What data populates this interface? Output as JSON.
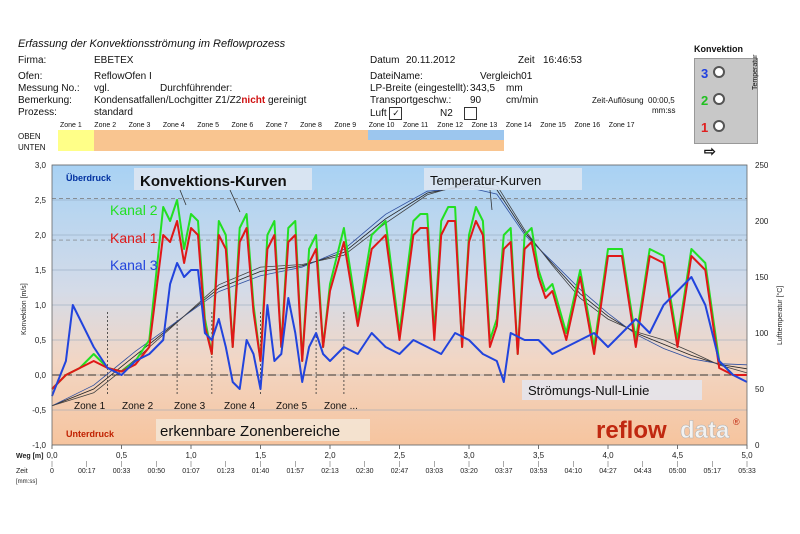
{
  "header": {
    "title": "Erfassung der Konvektionsströmung im Reflowprozess",
    "firma_label": "Firma:",
    "firma_value": "EBETEX",
    "datum_label": "Datum",
    "datum_value": "20.11.2012",
    "zeit_label": "Zeit",
    "zeit_value": "16:46:53",
    "ofen_label": "Ofen:",
    "ofen_value": "ReflowOfen I",
    "messung_label": "Messung No.:",
    "messung_value": "vgl.",
    "durchfuehrender_label": "Durchführender:",
    "bemerkung_label": "Bemerkung:",
    "bemerkung_value": "Kondensatfallen/Lochgitter Z1/Z2",
    "bemerkung_red": "nicht",
    "bemerkung_suffix": "gereinigt",
    "prozess_label": "Prozess:",
    "prozess_value": "standard",
    "dateiname_label": "DateiName:",
    "dateiname_value": "Vergleich01",
    "lp_label": "LP-Breite (eingestellt):",
    "lp_value": "343,5",
    "lp_unit": "mm",
    "transport_label": "Transportgeschw.:",
    "transport_value": "90",
    "transport_unit": "cm/min",
    "luft_label": "Luft",
    "n2_label": "N2",
    "aufloesung_label": "Zeit-Auflösung",
    "aufloesung_value": "00:00,5",
    "aufloesung_unit": "mm:ss"
  },
  "konvektion_panel": {
    "title": "Konvektion",
    "side_label": "Temperatur",
    "channels": [
      {
        "num": "3",
        "color": "#2040e0"
      },
      {
        "num": "2",
        "color": "#20c020"
      },
      {
        "num": "1",
        "color": "#e02020"
      }
    ]
  },
  "zone_strip": {
    "oben_label": "OBEN",
    "unten_label": "UNTEN",
    "zones": [
      "Zone 1",
      "Zone 2",
      "Zone 3",
      "Zone 4",
      "Zone 5",
      "Zone 6",
      "Zone 7",
      "Zone 8",
      "Zone 9",
      "Zone 10",
      "Zone 11",
      "Zone 12",
      "Zone 13",
      "Zone 14",
      "Zone 15",
      "Zone 16",
      "Zone 17"
    ]
  },
  "chart_data": {
    "type": "line",
    "ylabel_left": "Konvektion [m/s]",
    "ylabel_right": "Lufttemperatur [°C]",
    "xlabel_weg": "Weg [m]",
    "xlabel_zeit": "Zeit",
    "xlabel_zeit_unit": "[mm:ss]",
    "ylim_left": [
      -1.0,
      3.0
    ],
    "ylim_right": [
      0,
      250
    ],
    "xlim": [
      0,
      5.0
    ],
    "y_ticks_left": [
      "-1,0",
      "-0,5",
      "0,0",
      "0,5",
      "1,0",
      "1,5",
      "2,0",
      "2,5",
      "3,0"
    ],
    "y_ticks_right": [
      "0",
      "50",
      "100",
      "150",
      "200",
      "250"
    ],
    "x_ticks_weg": [
      "0,0",
      "0,5",
      "1,0",
      "1,5",
      "2,0",
      "2,5",
      "3,0",
      "3,5",
      "4,0",
      "4,5",
      "5,0"
    ],
    "x_ticks_zeit": [
      "0",
      "00:17",
      "00:33",
      "00:50",
      "01:07",
      "01:23",
      "01:40",
      "01:57",
      "02:13",
      "02:30",
      "02:47",
      "03:03",
      "03:20",
      "03:37",
      "03:53",
      "04:10",
      "04:27",
      "04:43",
      "05:00",
      "05:17",
      "05:33"
    ],
    "annotations": {
      "ueberdruck": "Überdruck",
      "unterdruck": "Unterdruck",
      "konvektions_kurven": "Konvektions-Kurven",
      "temperatur_kurven": "Temperatur-Kurven",
      "kanal2": "Kanal 2",
      "kanal1": "Kanal 1",
      "kanal3": "Kanal 3",
      "null_linie": "Strömungs-Null-Linie",
      "zonenbereiche": "erkennbare Zonenbereiche",
      "zone_labels": [
        "Zone 1",
        "Zone 2",
        "Zone 3",
        "Zone 4",
        "Zone 5",
        "Zone ..."
      ],
      "logo_a": "reflow",
      "logo_b": "data",
      "logo_reg": "®"
    },
    "colors": {
      "kanal1": "#e01818",
      "kanal2": "#22e022",
      "kanal3": "#2244dd"
    },
    "temperature_series": {
      "x": [
        0.0,
        0.3,
        0.6,
        0.9,
        1.2,
        1.5,
        1.8,
        2.1,
        2.4,
        2.7,
        3.0,
        3.2,
        3.4,
        3.6,
        3.8,
        4.0,
        4.2,
        4.4,
        4.6,
        4.8,
        5.0
      ],
      "values": [
        35,
        50,
        80,
        110,
        140,
        155,
        160,
        172,
        202,
        225,
        232,
        228,
        190,
        162,
        135,
        115,
        100,
        90,
        80,
        72,
        68
      ]
    },
    "series": [
      {
        "name": "Kanal 2",
        "x": [
          0.0,
          0.1,
          0.2,
          0.3,
          0.4,
          0.5,
          0.6,
          0.7,
          0.8,
          0.85,
          0.9,
          0.95,
          1.0,
          1.05,
          1.1,
          1.15,
          1.2,
          1.25,
          1.3,
          1.35,
          1.4,
          1.45,
          1.5,
          1.55,
          1.6,
          1.65,
          1.7,
          1.75,
          1.8,
          1.85,
          1.9,
          1.95,
          2.0,
          2.1,
          2.2,
          2.3,
          2.4,
          2.5,
          2.6,
          2.65,
          2.7,
          2.75,
          2.8,
          2.85,
          2.9,
          2.95,
          3.0,
          3.05,
          3.1,
          3.15,
          3.2,
          3.25,
          3.3,
          3.35,
          3.4,
          3.45,
          3.5,
          3.55,
          3.6,
          3.7,
          3.8,
          3.9,
          4.0,
          4.1,
          4.2,
          4.3,
          4.4,
          4.5,
          4.6,
          4.7,
          4.8,
          4.9,
          5.0
        ],
        "values": [
          -0.2,
          0.0,
          0.1,
          0.3,
          0.1,
          0.05,
          0.2,
          0.5,
          2.4,
          2.2,
          2.5,
          1.8,
          2.3,
          2.2,
          0.8,
          0.3,
          2.2,
          2.0,
          0.4,
          2.1,
          2.3,
          1.0,
          0.2,
          2.0,
          2.2,
          0.4,
          2.1,
          2.2,
          0.2,
          1.8,
          2.0,
          0.4,
          1.3,
          2.1,
          0.8,
          2.0,
          2.2,
          0.6,
          2.2,
          2.3,
          2.3,
          0.6,
          2.2,
          2.4,
          2.4,
          0.4,
          2.0,
          2.4,
          2.2,
          0.5,
          0.8,
          2.0,
          2.1,
          0.3,
          2.0,
          2.1,
          1.5,
          1.2,
          1.3,
          0.6,
          1.5,
          0.4,
          1.8,
          1.8,
          0.5,
          1.8,
          1.7,
          0.5,
          1.8,
          1.6,
          0.2,
          0.0,
          0.0
        ]
      },
      {
        "name": "Kanal 1",
        "x": [
          0.0,
          0.1,
          0.2,
          0.3,
          0.4,
          0.5,
          0.6,
          0.7,
          0.8,
          0.85,
          0.9,
          0.95,
          1.0,
          1.05,
          1.1,
          1.15,
          1.2,
          1.25,
          1.3,
          1.35,
          1.4,
          1.45,
          1.5,
          1.55,
          1.6,
          1.65,
          1.7,
          1.75,
          1.8,
          1.85,
          1.9,
          1.95,
          2.0,
          2.1,
          2.2,
          2.3,
          2.4,
          2.5,
          2.6,
          2.65,
          2.7,
          2.75,
          2.8,
          2.85,
          2.9,
          2.95,
          3.0,
          3.05,
          3.1,
          3.15,
          3.2,
          3.25,
          3.3,
          3.35,
          3.4,
          3.45,
          3.5,
          3.55,
          3.6,
          3.7,
          3.8,
          3.9,
          4.0,
          4.1,
          4.2,
          4.3,
          4.4,
          4.5,
          4.6,
          4.7,
          4.8,
          4.9,
          5.0
        ],
        "values": [
          -0.2,
          0.0,
          0.1,
          0.2,
          0.1,
          0.05,
          0.15,
          0.4,
          2.0,
          1.9,
          2.2,
          1.6,
          2.1,
          2.0,
          0.7,
          0.3,
          2.0,
          1.8,
          0.4,
          1.9,
          2.1,
          0.9,
          0.2,
          1.8,
          2.0,
          0.4,
          1.9,
          2.0,
          0.2,
          1.6,
          1.8,
          0.4,
          1.2,
          1.9,
          0.7,
          1.8,
          2.0,
          0.5,
          2.0,
          2.1,
          2.1,
          0.5,
          2.0,
          2.2,
          2.2,
          0.4,
          1.9,
          2.2,
          2.0,
          0.4,
          0.7,
          1.8,
          1.9,
          0.3,
          1.8,
          1.9,
          1.4,
          1.1,
          1.2,
          0.5,
          1.4,
          0.3,
          1.7,
          1.7,
          0.4,
          1.7,
          1.6,
          0.4,
          1.7,
          1.5,
          0.1,
          0.0,
          0.0
        ]
      },
      {
        "name": "Kanal 3",
        "x": [
          0.0,
          0.1,
          0.15,
          0.2,
          0.3,
          0.4,
          0.5,
          0.6,
          0.7,
          0.8,
          0.85,
          0.9,
          0.95,
          1.0,
          1.05,
          1.1,
          1.15,
          1.2,
          1.25,
          1.3,
          1.35,
          1.4,
          1.45,
          1.5,
          1.55,
          1.6,
          1.65,
          1.7,
          1.75,
          1.8,
          1.85,
          1.9,
          1.95,
          2.0,
          2.1,
          2.2,
          2.3,
          2.4,
          2.5,
          2.6,
          2.7,
          2.8,
          2.9,
          3.0,
          3.1,
          3.2,
          3.25,
          3.3,
          3.4,
          3.5,
          3.6,
          3.7,
          3.8,
          3.9,
          4.0,
          4.1,
          4.2,
          4.3,
          4.4,
          4.5,
          4.6,
          4.7,
          4.8,
          4.9,
          5.0
        ],
        "values": [
          -0.3,
          0.2,
          1.0,
          0.8,
          0.4,
          0.1,
          0.0,
          0.2,
          0.3,
          0.5,
          1.3,
          1.6,
          1.4,
          1.5,
          1.5,
          0.6,
          0.5,
          0.8,
          0.4,
          -0.1,
          -0.2,
          0.5,
          0.3,
          -0.2,
          1.0,
          0.2,
          0.3,
          1.1,
          0.6,
          -0.1,
          0.4,
          0.6,
          0.3,
          0.2,
          0.4,
          0.3,
          0.6,
          0.4,
          0.3,
          0.5,
          0.4,
          0.3,
          0.6,
          0.5,
          0.3,
          0.2,
          -0.1,
          0.6,
          0.5,
          0.5,
          0.3,
          0.4,
          0.5,
          0.6,
          0.4,
          0.6,
          0.8,
          0.6,
          1.0,
          1.2,
          1.4,
          1.0,
          0.2,
          0.0,
          -0.1
        ]
      }
    ]
  }
}
